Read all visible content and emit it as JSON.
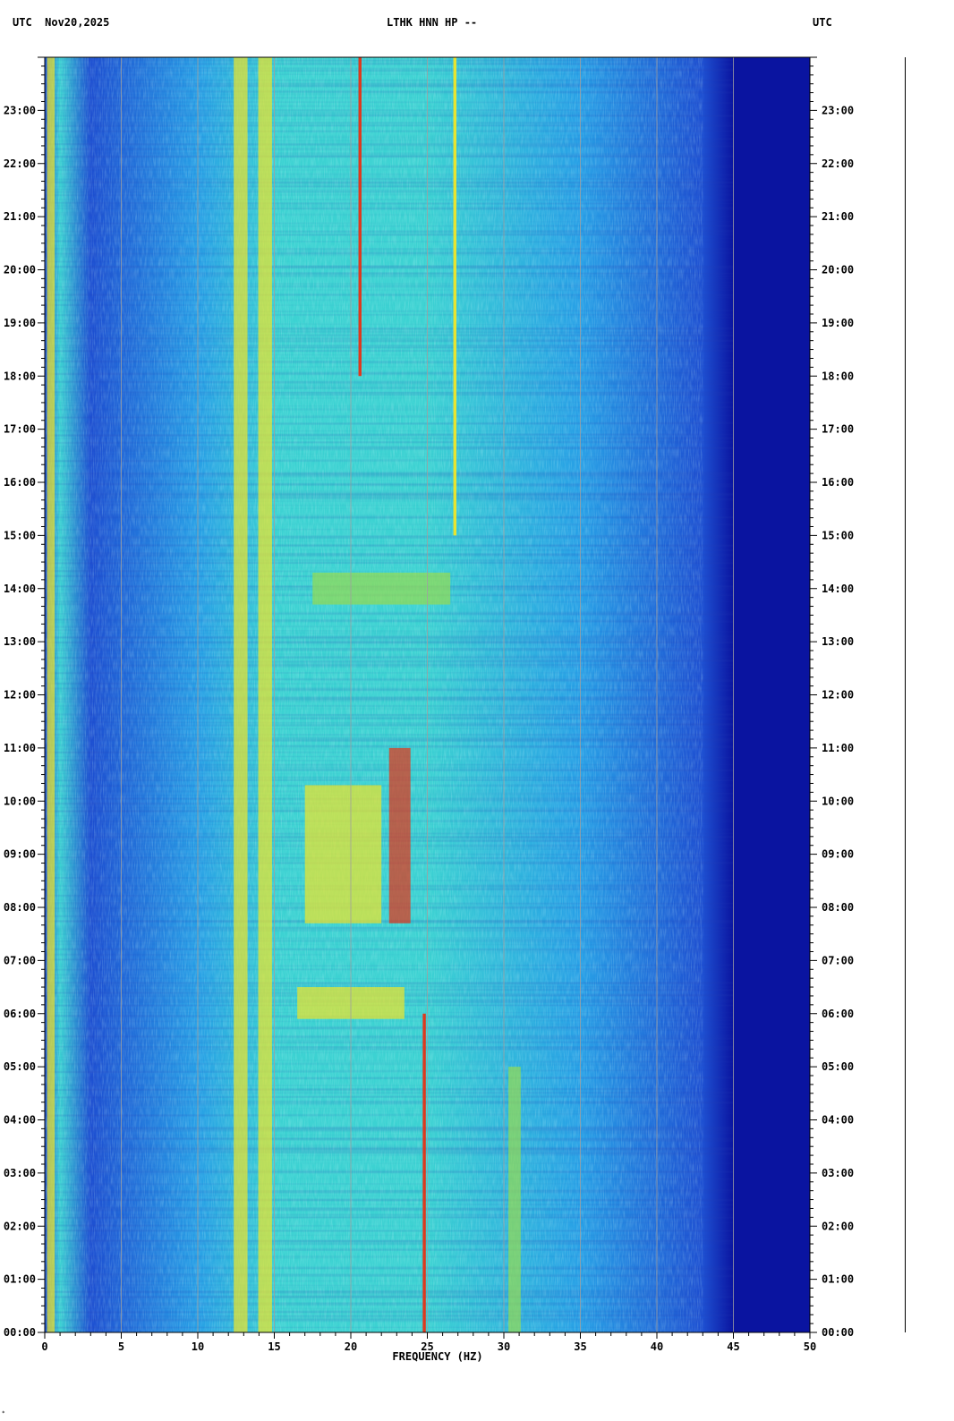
{
  "header": {
    "left": "UTC  Nov20,2025",
    "center": "LTHK HNN HP --",
    "right": "UTC"
  },
  "chart_data": {
    "type": "heatmap",
    "xlabel": "FREQUENCY (HZ)",
    "xlim": [
      0,
      50
    ],
    "x_ticks": [
      "0",
      "5",
      "10",
      "15",
      "20",
      "25",
      "30",
      "35",
      "40",
      "45",
      "50"
    ],
    "y_ticks": [
      "00:00",
      "01:00",
      "02:00",
      "03:00",
      "04:00",
      "05:00",
      "06:00",
      "07:00",
      "08:00",
      "09:00",
      "10:00",
      "11:00",
      "12:00",
      "13:00",
      "14:00",
      "15:00",
      "16:00",
      "17:00",
      "18:00",
      "19:00",
      "20:00",
      "21:00",
      "22:00",
      "23:00"
    ],
    "ylim_hours": [
      0,
      24
    ],
    "grid": true,
    "colors": {
      "background_low": "#0a14a0",
      "low": "#1e50d2",
      "mid": "#28a0e6",
      "cyan": "#3cd2d2",
      "green": "#96dc50",
      "yellow": "#f0e628",
      "high": "#e63214",
      "gridline": "#a0a0a0"
    },
    "features": [
      {
        "name": "band",
        "freq": 12.8,
        "width": 0.9,
        "from_hour": 0,
        "to_hour": 24,
        "level": 0.85
      },
      {
        "name": "band",
        "freq": 14.4,
        "width": 0.9,
        "from_hour": 0,
        "to_hour": 24,
        "level": 0.8
      },
      {
        "name": "band",
        "freq": 0.4,
        "width": 0.5,
        "from_hour": 0,
        "to_hour": 24,
        "level": 0.75
      },
      {
        "name": "line",
        "freq": 20.6,
        "width": 0.2,
        "from_hour": 18,
        "to_hour": 24,
        "level": 0.9
      },
      {
        "name": "line",
        "freq": 26.8,
        "width": 0.2,
        "from_hour": 15,
        "to_hour": 24,
        "level": 0.8
      },
      {
        "name": "line",
        "freq": 24.8,
        "width": 0.2,
        "from_hour": 0,
        "to_hour": 6,
        "level": 0.95
      },
      {
        "name": "band",
        "freq": 30.7,
        "width": 0.8,
        "from_hour": 0,
        "to_hour": 5,
        "level": 0.6
      },
      {
        "name": "patch",
        "freq": 23.2,
        "width": 1.4,
        "from_hour": 7.7,
        "to_hour": 11,
        "level": 0.95
      },
      {
        "name": "patch",
        "freq": 19.5,
        "width": 5.0,
        "from_hour": 7.7,
        "to_hour": 10.3,
        "level": 0.75
      },
      {
        "name": "patch",
        "freq": 20.0,
        "width": 7.0,
        "from_hour": 5.9,
        "to_hour": 6.5,
        "level": 0.75
      },
      {
        "name": "patch",
        "freq": 22.0,
        "width": 9.0,
        "from_hour": 13.7,
        "to_hour": 14.3,
        "level": 0.65
      }
    ],
    "rolloff_start_hz": 43,
    "rolloff_end_hz": 45
  },
  "footer_mark": "*"
}
